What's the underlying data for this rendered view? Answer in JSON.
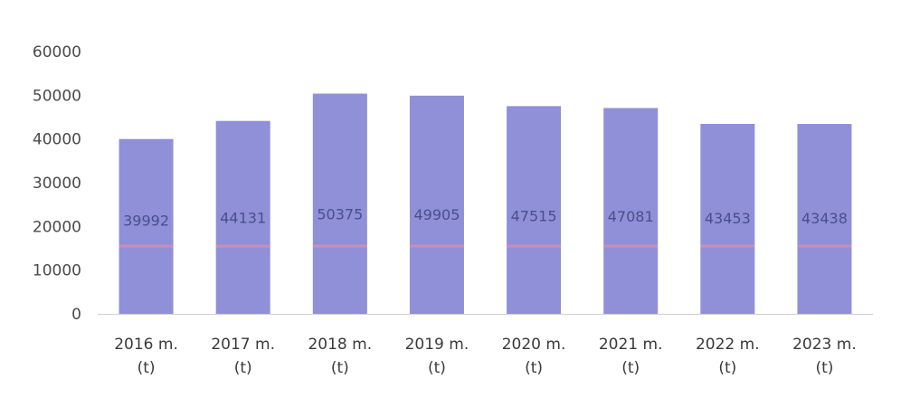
{
  "chart_data": {
    "type": "bar",
    "title": "",
    "xlabel": "",
    "ylabel": "",
    "categories": [
      [
        "2016  m.",
        "(t)"
      ],
      [
        "2017 m.",
        "(t)"
      ],
      [
        "2018 m.",
        "(t)"
      ],
      [
        "2019 m.",
        "(t)"
      ],
      [
        "2020 m.",
        "(t)"
      ],
      [
        "2021 m.",
        "(t)"
      ],
      [
        "2022 m.",
        "(t)"
      ],
      [
        "2023 m.",
        "(t)"
      ]
    ],
    "values": [
      39992,
      44131,
      50375,
      49905,
      47515,
      47081,
      43453,
      43438
    ],
    "data_labels": [
      "39992",
      "44131",
      "50375",
      "49905",
      "47515",
      "47081",
      "43453",
      "43438"
    ],
    "ylim": [
      0,
      60000
    ],
    "yticks": [
      0,
      10000,
      20000,
      30000,
      40000,
      50000,
      60000
    ],
    "ytick_labels": [
      "0",
      "10000",
      "20000",
      "30000",
      "40000",
      "50000",
      "60000"
    ],
    "grid": false,
    "legend": "none",
    "colors": {
      "bar": "#8f90d8",
      "bar_stripe": "#d98fb0",
      "axis_line": "#d0d0d0"
    }
  }
}
